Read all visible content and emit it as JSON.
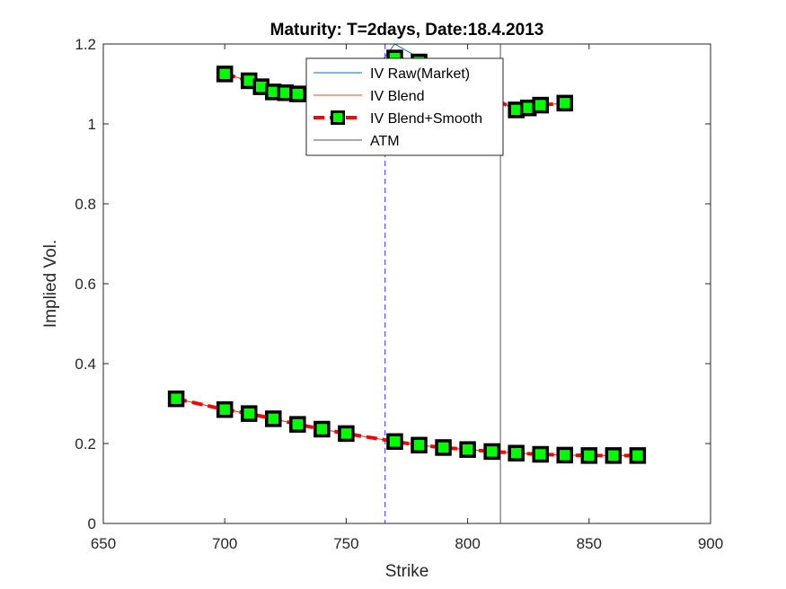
{
  "chart_data": {
    "type": "line",
    "title": "Maturity: T=2days, Date:18.4.2013",
    "xlabel": "Strike",
    "ylabel": "Implied Vol.",
    "xlim": [
      650,
      900
    ],
    "ylim": [
      0,
      1.2
    ],
    "xticks": [
      "650",
      "700",
      "750",
      "800",
      "850",
      "900"
    ],
    "yticks": [
      "0",
      "0.2",
      "0.4",
      "0.6",
      "0.8",
      "1",
      "1.2"
    ],
    "grid": false,
    "legend_position": "top-center",
    "vertical_lines": [
      {
        "x": 766,
        "style": "dashed",
        "color": "#3a3aff"
      },
      {
        "x": 813.5,
        "style": "solid",
        "color": "#555555"
      }
    ],
    "series": [
      {
        "name": "IV Raw(Market)",
        "color": "#0072bd",
        "style": "thin",
        "segments": [
          {
            "x": [
              700,
              710,
              715,
              720,
              725,
              730,
              760,
              765,
              770,
              780,
              820,
              825,
              830,
              840
            ],
            "y": [
              1.125,
              1.108,
              1.093,
              1.08,
              1.078,
              1.075,
              1.15,
              1.16,
              1.2,
              1.165,
              1.035,
              1.04,
              1.047,
              1.052
            ]
          },
          {
            "x": [
              680,
              700,
              710,
              720,
              730,
              740,
              750,
              770,
              780,
              790,
              800,
              810,
              820,
              830,
              840,
              850,
              860,
              870
            ],
            "y": [
              0.312,
              0.285,
              0.275,
              0.262,
              0.248,
              0.236,
              0.225,
              0.205,
              0.196,
              0.19,
              0.185,
              0.18,
              0.176,
              0.173,
              0.171,
              0.17,
              0.17,
              0.17
            ]
          }
        ]
      },
      {
        "name": "IV Blend",
        "color": "#d95319",
        "style": "thin",
        "segments": [
          {
            "x": [
              700,
              710,
              715,
              720,
              725,
              730,
              760,
              770,
              780,
              820,
              825,
              830,
              840
            ],
            "y": [
              1.125,
              1.108,
              1.093,
              1.08,
              1.078,
              1.075,
              1.15,
              1.165,
              1.155,
              1.035,
              1.04,
              1.047,
              1.052
            ]
          },
          {
            "x": [
              680,
              700,
              710,
              720,
              730,
              740,
              750,
              770,
              780,
              790,
              800,
              810,
              820,
              830,
              840,
              850,
              860,
              870
            ],
            "y": [
              0.312,
              0.285,
              0.275,
              0.262,
              0.248,
              0.236,
              0.225,
              0.205,
              0.196,
              0.19,
              0.185,
              0.18,
              0.176,
              0.173,
              0.171,
              0.17,
              0.17,
              0.17
            ]
          }
        ]
      },
      {
        "name": "IV Blend+Smooth",
        "color": "#ff0000",
        "marker_fill": "#00ff00",
        "marker_edge": "#000000",
        "style": "thick-dashed-square",
        "segments": [
          {
            "x": [
              700,
              710,
              715,
              720,
              725,
              730,
              770,
              780,
              820,
              825,
              830,
              840
            ],
            "y": [
              1.125,
              1.108,
              1.093,
              1.08,
              1.078,
              1.075,
              1.165,
              1.155,
              1.035,
              1.04,
              1.047,
              1.052
            ]
          },
          {
            "x": [
              680,
              700,
              710,
              720,
              730,
              740,
              750,
              770,
              780,
              790,
              800,
              810,
              820,
              830,
              840,
              850,
              860,
              870
            ],
            "y": [
              0.312,
              0.285,
              0.275,
              0.262,
              0.248,
              0.236,
              0.225,
              0.205,
              0.196,
              0.19,
              0.185,
              0.18,
              0.176,
              0.173,
              0.171,
              0.17,
              0.17,
              0.17
            ]
          }
        ]
      },
      {
        "name": "ATM",
        "color": "#555555",
        "style": "thin"
      }
    ]
  }
}
